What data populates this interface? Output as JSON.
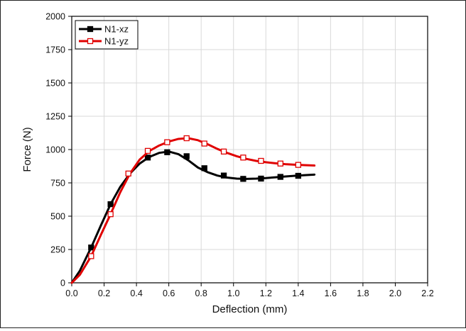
{
  "chart_data": {
    "type": "line",
    "xlabel": "Deflection (mm)",
    "ylabel": "Force (N)",
    "xlim": [
      0,
      2.2
    ],
    "ylim": [
      0,
      2000
    ],
    "xticks": [
      0.0,
      0.2,
      0.4,
      0.6,
      0.8,
      1.0,
      1.2,
      1.4,
      1.6,
      1.8,
      2.0,
      2.2
    ],
    "xtick_labels": [
      "0.0",
      "0.2",
      "0.4",
      "0.6",
      "0.8",
      "1.0",
      "1.2",
      "1.4",
      "1.6",
      "1.8",
      "2.0",
      "2.2"
    ],
    "yticks": [
      0,
      250,
      500,
      750,
      1000,
      1250,
      1500,
      1750,
      2000
    ],
    "ytick_labels": [
      "0",
      "250",
      "500",
      "750",
      "1000",
      "1250",
      "1500",
      "1750",
      "2000"
    ],
    "grid": true,
    "legend_position": "top-left",
    "series": [
      {
        "name": "N1-xz",
        "color": "#000000",
        "marker": "filled-square",
        "curve_x": [
          0,
          0.05,
          0.12,
          0.18,
          0.24,
          0.3,
          0.36,
          0.42,
          0.48,
          0.54,
          0.6,
          0.66,
          0.72,
          0.78,
          0.84,
          0.9,
          0.96,
          1.02,
          1.08,
          1.14,
          1.2,
          1.26,
          1.32,
          1.38,
          1.44,
          1.5
        ],
        "curve_y": [
          0,
          90,
          265,
          430,
          590,
          720,
          820,
          895,
          945,
          975,
          985,
          965,
          920,
          865,
          830,
          805,
          790,
          782,
          780,
          782,
          786,
          792,
          798,
          803,
          808,
          812
        ],
        "marker_x": [
          0.12,
          0.24,
          0.47,
          0.59,
          0.71,
          0.82,
          0.94,
          1.06,
          1.17,
          1.29,
          1.4
        ],
        "marker_y": [
          265,
          590,
          940,
          980,
          950,
          860,
          805,
          780,
          782,
          795,
          803
        ]
      },
      {
        "name": "N1-yz",
        "color": "#e00000",
        "marker": "open-square",
        "curve_x": [
          0,
          0.05,
          0.12,
          0.18,
          0.24,
          0.3,
          0.36,
          0.42,
          0.48,
          0.54,
          0.6,
          0.66,
          0.72,
          0.78,
          0.84,
          0.9,
          0.96,
          1.02,
          1.08,
          1.14,
          1.2,
          1.26,
          1.32,
          1.38,
          1.44,
          1.5
        ],
        "curve_y": [
          0,
          60,
          200,
          360,
          515,
          680,
          820,
          925,
          990,
          1030,
          1060,
          1080,
          1085,
          1070,
          1040,
          1005,
          975,
          950,
          930,
          915,
          905,
          897,
          890,
          886,
          883,
          880
        ],
        "marker_x": [
          0.12,
          0.24,
          0.35,
          0.47,
          0.59,
          0.71,
          0.82,
          0.94,
          1.06,
          1.17,
          1.29,
          1.4
        ],
        "marker_y": [
          200,
          515,
          820,
          990,
          1055,
          1085,
          1045,
          985,
          940,
          915,
          895,
          885
        ]
      }
    ]
  }
}
